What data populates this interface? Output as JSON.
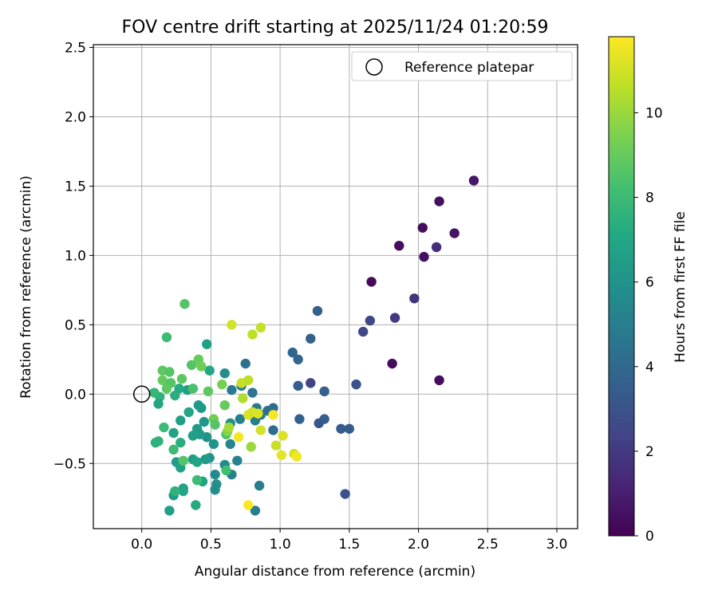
{
  "chart_data": {
    "type": "scatter",
    "title": "FOV centre drift starting at 2025/11/24 01:20:59",
    "xlabel": "Angular distance from reference (arcmin)",
    "ylabel": "Rotation from reference (arcmin)",
    "xlim": [
      -0.35,
      3.15
    ],
    "ylim": [
      -0.97,
      2.52
    ],
    "xticks": [
      0.0,
      0.5,
      1.0,
      1.5,
      2.0,
      2.5,
      3.0
    ],
    "xtick_labels": [
      "0.0",
      "0.5",
      "1.0",
      "1.5",
      "2.0",
      "2.5",
      "3.0"
    ],
    "yticks": [
      -0.5,
      0.0,
      0.5,
      1.0,
      1.5,
      2.0,
      2.5
    ],
    "ytick_labels": [
      "−0.5",
      "0.0",
      "0.5",
      "1.0",
      "1.5",
      "2.0",
      "2.5"
    ],
    "grid": true,
    "legend": {
      "position": "top-right",
      "label": "Reference platepar"
    },
    "reference_point": {
      "x": 0.0,
      "y": 0.0
    },
    "colorbar": {
      "label": "Hours from first FF file",
      "range": [
        0,
        11.8
      ],
      "ticks": [
        0,
        2,
        4,
        6,
        8,
        10
      ],
      "tick_labels": [
        "0",
        "2",
        "4",
        "6",
        "8",
        "10"
      ],
      "colormap": "viridis"
    },
    "points": [
      {
        "x": 2.4,
        "y": 1.54,
        "h": 0.7
      },
      {
        "x": 2.15,
        "y": 1.39,
        "h": 0.5
      },
      {
        "x": 2.03,
        "y": 1.2,
        "h": 0.4
      },
      {
        "x": 2.26,
        "y": 1.16,
        "h": 0.6
      },
      {
        "x": 1.86,
        "y": 1.07,
        "h": 0.4
      },
      {
        "x": 2.13,
        "y": 1.06,
        "h": 1.5
      },
      {
        "x": 2.04,
        "y": 0.99,
        "h": 0.5
      },
      {
        "x": 1.66,
        "y": 0.81,
        "h": 0.3
      },
      {
        "x": 1.97,
        "y": 0.69,
        "h": 1.8
      },
      {
        "x": 1.27,
        "y": 0.6,
        "h": 3.6
      },
      {
        "x": 1.83,
        "y": 0.55,
        "h": 2.0
      },
      {
        "x": 1.65,
        "y": 0.53,
        "h": 2.6
      },
      {
        "x": 1.6,
        "y": 0.45,
        "h": 2.6
      },
      {
        "x": 1.22,
        "y": 0.4,
        "h": 3.6
      },
      {
        "x": 1.09,
        "y": 0.3,
        "h": 3.9
      },
      {
        "x": 1.13,
        "y": 0.25,
        "h": 3.8
      },
      {
        "x": 1.81,
        "y": 0.22,
        "h": 0.3
      },
      {
        "x": 2.15,
        "y": 0.1,
        "h": 0.4
      },
      {
        "x": 1.22,
        "y": 0.08,
        "h": 2.4
      },
      {
        "x": 1.55,
        "y": 0.07,
        "h": 3.0
      },
      {
        "x": 1.13,
        "y": 0.06,
        "h": 3.5
      },
      {
        "x": 1.32,
        "y": 0.02,
        "h": 3.6
      },
      {
        "x": 1.32,
        "y": -0.18,
        "h": 3.6
      },
      {
        "x": 1.28,
        "y": -0.21,
        "h": 3.2
      },
      {
        "x": 1.14,
        "y": -0.18,
        "h": 3.6
      },
      {
        "x": 1.44,
        "y": -0.25,
        "h": 3.4
      },
      {
        "x": 1.5,
        "y": -0.25,
        "h": 3.4
      },
      {
        "x": 1.47,
        "y": -0.72,
        "h": 3.0
      },
      {
        "x": 0.95,
        "y": -0.26,
        "h": 4.2
      },
      {
        "x": 0.95,
        "y": -0.1,
        "h": 4.2
      },
      {
        "x": 0.91,
        "y": -0.12,
        "h": 4.3
      },
      {
        "x": 0.86,
        "y": -0.15,
        "h": 4.6
      },
      {
        "x": 0.83,
        "y": -0.1,
        "h": 4.8
      },
      {
        "x": 0.8,
        "y": 0.01,
        "h": 4.6
      },
      {
        "x": 0.75,
        "y": 0.22,
        "h": 4.4
      },
      {
        "x": 0.72,
        "y": 0.06,
        "h": 5.0
      },
      {
        "x": 0.65,
        "y": 0.03,
        "h": 4.8
      },
      {
        "x": 0.71,
        "y": -0.18,
        "h": 5.0
      },
      {
        "x": 0.82,
        "y": -0.19,
        "h": 5.0
      },
      {
        "x": 0.85,
        "y": -0.66,
        "h": 5.0
      },
      {
        "x": 0.82,
        "y": -0.84,
        "h": 5.0
      },
      {
        "x": 0.69,
        "y": -0.48,
        "h": 5.2
      },
      {
        "x": 0.65,
        "y": -0.58,
        "h": 5.2
      },
      {
        "x": 0.64,
        "y": -0.36,
        "h": 5.4
      },
      {
        "x": 0.6,
        "y": -0.51,
        "h": 5.6
      },
      {
        "x": 0.64,
        "y": -0.21,
        "h": 5.8
      },
      {
        "x": 0.6,
        "y": 0.15,
        "h": 5.8
      },
      {
        "x": 0.53,
        "y": -0.58,
        "h": 5.6
      },
      {
        "x": 0.54,
        "y": -0.65,
        "h": 5.8
      },
      {
        "x": 0.53,
        "y": -0.69,
        "h": 5.8
      },
      {
        "x": 0.52,
        "y": -0.36,
        "h": 6.0
      },
      {
        "x": 0.49,
        "y": -0.46,
        "h": 6.0
      },
      {
        "x": 0.47,
        "y": -0.31,
        "h": 6.0
      },
      {
        "x": 0.47,
        "y": 0.36,
        "h": 6.6
      },
      {
        "x": 0.49,
        "y": 0.17,
        "h": 7.0
      },
      {
        "x": 0.43,
        "y": -0.1,
        "h": 6.2
      },
      {
        "x": 0.45,
        "y": -0.2,
        "h": 6.2
      },
      {
        "x": 0.42,
        "y": -0.29,
        "h": 6.4
      },
      {
        "x": 0.4,
        "y": -0.25,
        "h": 6.4
      },
      {
        "x": 0.37,
        "y": -0.3,
        "h": 6.6
      },
      {
        "x": 0.37,
        "y": -0.47,
        "h": 6.6
      },
      {
        "x": 0.4,
        "y": -0.49,
        "h": 7.0
      },
      {
        "x": 0.46,
        "y": -0.47,
        "h": 6.4
      },
      {
        "x": 0.44,
        "y": -0.63,
        "h": 6.8
      },
      {
        "x": 0.4,
        "y": -0.62,
        "h": 8.0
      },
      {
        "x": 0.39,
        "y": -0.8,
        "h": 7.2
      },
      {
        "x": 0.3,
        "y": -0.68,
        "h": 6.8
      },
      {
        "x": 0.3,
        "y": -0.7,
        "h": 7.0
      },
      {
        "x": 0.23,
        "y": -0.73,
        "h": 6.4
      },
      {
        "x": 0.24,
        "y": -0.7,
        "h": 7.6
      },
      {
        "x": 0.2,
        "y": -0.84,
        "h": 6.6
      },
      {
        "x": 0.25,
        "y": -0.49,
        "h": 6.4
      },
      {
        "x": 0.28,
        "y": -0.53,
        "h": 6.8
      },
      {
        "x": 0.3,
        "y": -0.48,
        "h": 8.6
      },
      {
        "x": 0.28,
        "y": -0.35,
        "h": 7.4
      },
      {
        "x": 0.23,
        "y": -0.4,
        "h": 8.0
      },
      {
        "x": 0.23,
        "y": -0.28,
        "h": 6.8
      },
      {
        "x": 0.28,
        "y": -0.19,
        "h": 6.6
      },
      {
        "x": 0.34,
        "y": -0.13,
        "h": 7.0
      },
      {
        "x": 0.41,
        "y": -0.08,
        "h": 6.4
      },
      {
        "x": 0.33,
        "y": 0.03,
        "h": 6.6
      },
      {
        "x": 0.37,
        "y": 0.04,
        "h": 8.4
      },
      {
        "x": 0.29,
        "y": 0.11,
        "h": 8.8
      },
      {
        "x": 0.36,
        "y": 0.21,
        "h": 8.6
      },
      {
        "x": 0.41,
        "y": 0.25,
        "h": 9.0
      },
      {
        "x": 0.43,
        "y": 0.2,
        "h": 9.2
      },
      {
        "x": 0.31,
        "y": 0.65,
        "h": 8.6
      },
      {
        "x": 0.18,
        "y": 0.41,
        "h": 8.0
      },
      {
        "x": 0.15,
        "y": 0.17,
        "h": 8.8
      },
      {
        "x": 0.2,
        "y": 0.16,
        "h": 8.6
      },
      {
        "x": 0.15,
        "y": 0.1,
        "h": 9.0
      },
      {
        "x": 0.21,
        "y": 0.08,
        "h": 8.6
      },
      {
        "x": 0.18,
        "y": 0.04,
        "h": 8.8
      },
      {
        "x": 0.13,
        "y": -0.02,
        "h": 7.6
      },
      {
        "x": 0.12,
        "y": -0.07,
        "h": 7.0
      },
      {
        "x": 0.09,
        "y": 0.01,
        "h": 7.8
      },
      {
        "x": 0.16,
        "y": -0.24,
        "h": 8.0
      },
      {
        "x": 0.1,
        "y": -0.35,
        "h": 7.4
      },
      {
        "x": 0.12,
        "y": -0.34,
        "h": 7.6
      },
      {
        "x": 0.27,
        "y": 0.04,
        "h": 7.2
      },
      {
        "x": 0.24,
        "y": -0.01,
        "h": 7.4
      },
      {
        "x": 0.48,
        "y": 0.02,
        "h": 8.8
      },
      {
        "x": 0.52,
        "y": -0.18,
        "h": 9.2
      },
      {
        "x": 0.53,
        "y": -0.22,
        "h": 8.6
      },
      {
        "x": 0.58,
        "y": 0.07,
        "h": 9.4
      },
      {
        "x": 0.6,
        "y": -0.08,
        "h": 9.0
      },
      {
        "x": 0.61,
        "y": -0.29,
        "h": 8.4
      },
      {
        "x": 0.62,
        "y": -0.27,
        "h": 9.6
      },
      {
        "x": 0.63,
        "y": -0.24,
        "h": 10.2
      },
      {
        "x": 0.61,
        "y": -0.55,
        "h": 8.2
      },
      {
        "x": 0.79,
        "y": -0.38,
        "h": 10.0
      },
      {
        "x": 0.65,
        "y": 0.5,
        "h": 11.0
      },
      {
        "x": 0.8,
        "y": 0.43,
        "h": 10.6
      },
      {
        "x": 0.86,
        "y": 0.48,
        "h": 10.8
      },
      {
        "x": 0.72,
        "y": 0.08,
        "h": 10.8
      },
      {
        "x": 0.77,
        "y": 0.1,
        "h": 10.6
      },
      {
        "x": 0.73,
        "y": -0.03,
        "h": 10.4
      },
      {
        "x": 0.77,
        "y": -0.15,
        "h": 11.2
      },
      {
        "x": 0.8,
        "y": -0.13,
        "h": 11.0
      },
      {
        "x": 0.84,
        "y": -0.14,
        "h": 11.2
      },
      {
        "x": 0.86,
        "y": -0.26,
        "h": 11.0
      },
      {
        "x": 0.95,
        "y": -0.15,
        "h": 11.6
      },
      {
        "x": 0.97,
        "y": -0.37,
        "h": 10.8
      },
      {
        "x": 1.02,
        "y": -0.3,
        "h": 11.2
      },
      {
        "x": 1.01,
        "y": -0.44,
        "h": 11.4
      },
      {
        "x": 1.1,
        "y": -0.43,
        "h": 11.0
      },
      {
        "x": 1.12,
        "y": -0.45,
        "h": 11.6
      },
      {
        "x": 0.7,
        "y": -0.31,
        "h": 11.6
      },
      {
        "x": 0.77,
        "y": -0.8,
        "h": 11.8
      }
    ]
  }
}
